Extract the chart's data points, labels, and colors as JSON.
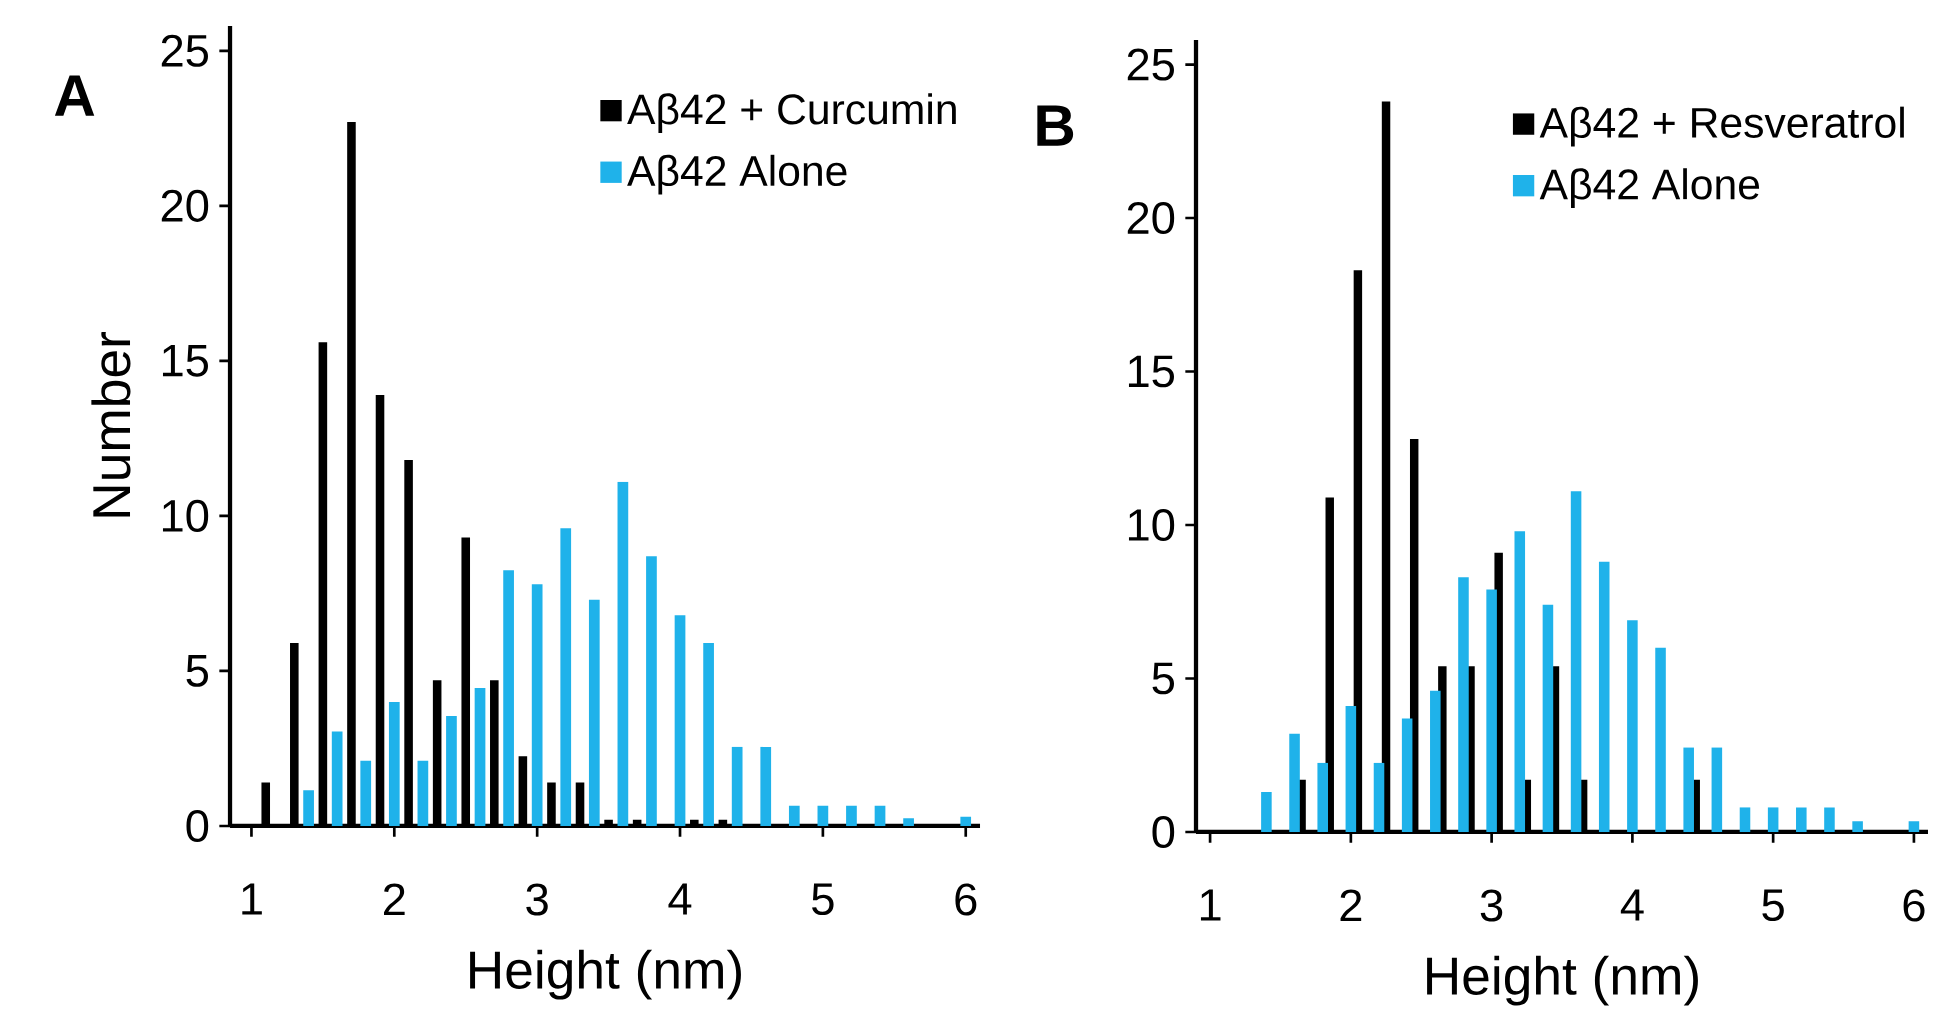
{
  "chart_data": [
    {
      "type": "bar",
      "annotations": [
        "A"
      ],
      "xlabel": "Height (nm)",
      "ylabel": "Number",
      "xlim": [
        0.85,
        6.1
      ],
      "ylim": [
        0,
        25.8
      ],
      "xticks": [
        1,
        2,
        3,
        4,
        5,
        6
      ],
      "yticks": [
        0,
        5,
        10,
        15,
        20,
        25
      ],
      "legend": "top right",
      "series": [
        {
          "name": "Aβ42 + Curcumin",
          "color": "#000000",
          "x": [
            1.1,
            1.3,
            1.5,
            1.7,
            1.9,
            2.1,
            2.3,
            2.5,
            2.7,
            2.9,
            3.1,
            3.3,
            3.5,
            3.7,
            3.9,
            4.1,
            4.3
          ],
          "values": [
            1.4,
            5.9,
            15.6,
            22.7,
            13.9,
            11.8,
            4.7,
            9.3,
            4.7,
            2.25,
            1.4,
            1.4,
            0.2,
            0.2,
            0,
            0.2,
            0.2
          ]
        },
        {
          "name": "Aβ42 Alone",
          "color": "#1fb2ea",
          "x": [
            1.4,
            1.6,
            1.8,
            2.0,
            2.2,
            2.4,
            2.6,
            2.8,
            3.0,
            3.2,
            3.4,
            3.6,
            3.8,
            4.0,
            4.2,
            4.4,
            4.6,
            4.8,
            5.0,
            5.2,
            5.4,
            5.6,
            5.8,
            6.0
          ],
          "values": [
            1.15,
            3.05,
            2.1,
            4.0,
            2.1,
            3.55,
            4.45,
            8.25,
            7.8,
            9.6,
            7.3,
            11.1,
            8.7,
            6.8,
            5.9,
            2.55,
            2.55,
            0.65,
            0.65,
            0.65,
            0.65,
            0.25,
            0,
            0.3
          ]
        }
      ]
    },
    {
      "type": "bar",
      "annotations": [
        "B"
      ],
      "xlabel": "Height (nm)",
      "xlim": [
        0.9,
        6.1
      ],
      "ylim": [
        0,
        25.8
      ],
      "xticks": [
        1,
        2,
        3,
        4,
        5,
        6
      ],
      "yticks": [
        0,
        5,
        10,
        15,
        20,
        25
      ],
      "legend": "top right",
      "series": [
        {
          "name": "Aβ42 + Resveratrol",
          "color": "#000000",
          "x": [
            1.65,
            1.85,
            2.05,
            2.25,
            2.45,
            2.65,
            2.85,
            3.05,
            3.25,
            3.45,
            3.65,
            3.85,
            4.05,
            4.25,
            4.45
          ],
          "values": [
            1.7,
            10.9,
            18.3,
            23.8,
            12.8,
            5.4,
            5.4,
            9.1,
            1.7,
            5.4,
            1.7,
            0,
            0,
            0,
            1.7
          ]
        },
        {
          "name": "Aβ42 Alone",
          "color": "#1fb2ea",
          "x": [
            1.4,
            1.6,
            1.8,
            2.0,
            2.2,
            2.4,
            2.6,
            2.8,
            3.0,
            3.2,
            3.4,
            3.6,
            3.8,
            4.0,
            4.2,
            4.4,
            4.6,
            4.8,
            5.0,
            5.2,
            5.4,
            5.6,
            5.8,
            6.0
          ],
          "values": [
            1.3,
            3.2,
            2.25,
            4.1,
            2.25,
            3.7,
            4.6,
            8.3,
            7.9,
            9.8,
            7.4,
            11.1,
            8.8,
            6.9,
            6.0,
            2.75,
            2.75,
            0.8,
            0.8,
            0.8,
            0.8,
            0.35,
            0,
            0.35
          ]
        }
      ]
    }
  ]
}
